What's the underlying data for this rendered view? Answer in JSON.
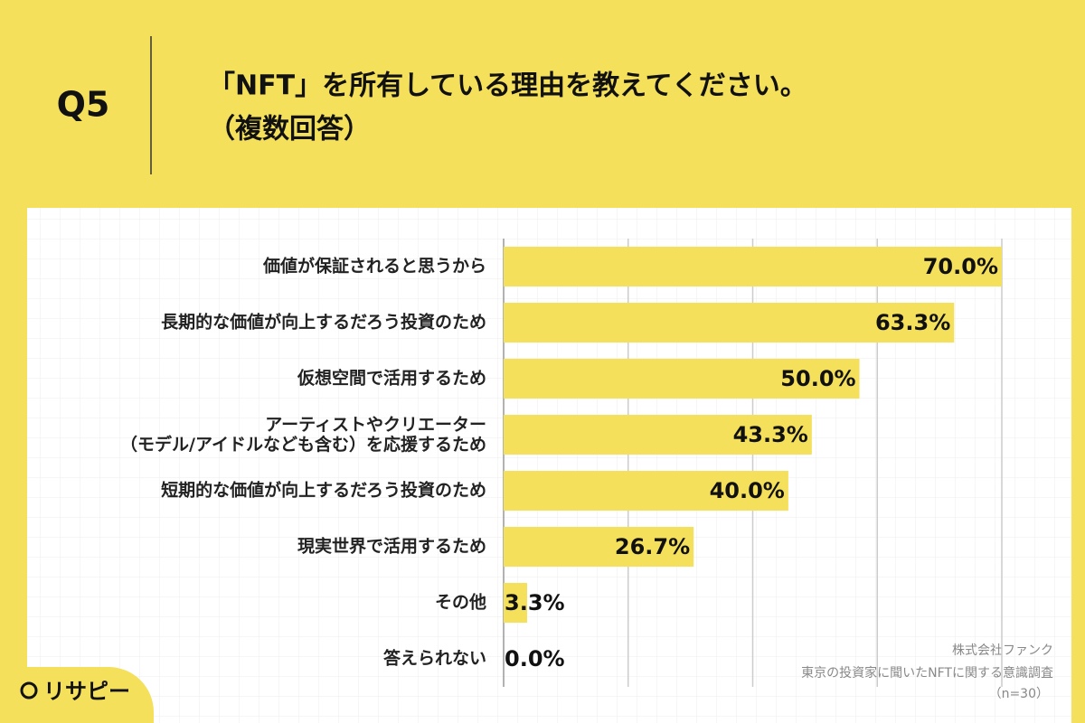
{
  "header": {
    "question": "Q5",
    "title_lines": [
      "「NFT」を所有している理由を教えてください。",
      "（複数回答）"
    ]
  },
  "chart_data": {
    "type": "bar",
    "orientation": "horizontal",
    "categories": [
      "価値が保証されると思うから",
      "長期的な価値が向上するだろう投資のため",
      "仮想空間で活用するため",
      "アーティストやクリエーター\n（モデル/アイドルなども含む）を応援するため",
      "短期的な価値が向上するだろう投資のため",
      "現実世界で活用するため",
      "その他",
      "答えられない"
    ],
    "values": [
      70.0,
      63.3,
      50.0,
      43.3,
      40.0,
      26.7,
      3.3,
      0.0
    ],
    "value_labels": [
      "70.0%",
      "63.3%",
      "50.0%",
      "43.3%",
      "40.0%",
      "26.7%",
      "3.3%",
      "0.0%"
    ],
    "color": "#f4e05b",
    "xlim": [
      0,
      70
    ],
    "xticks": [
      0,
      17.5,
      35,
      52.5,
      70
    ],
    "grid": true
  },
  "source": [
    "株式会社ファンク",
    "東京の投資家に聞いたNFTに関する意識調査",
    "（n=30）"
  ],
  "logo": "リサピー"
}
